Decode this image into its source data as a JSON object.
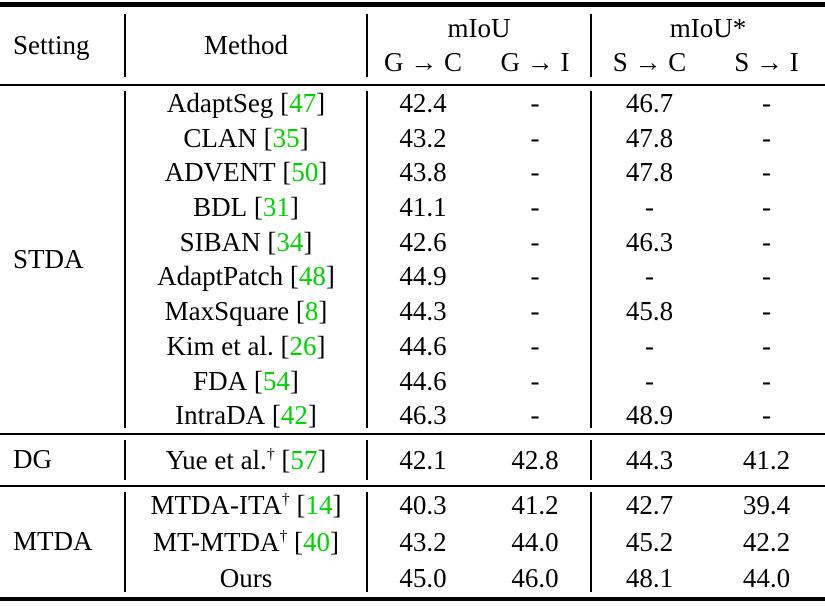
{
  "colors": {
    "citation_green": "#00d400",
    "text": "#000000",
    "background": "#ffffff",
    "rule": "#000000"
  },
  "header": {
    "setting": "Setting",
    "method": "Method",
    "miou": "mIoU",
    "miou_star": "mIoU*",
    "g_to_c": "G → C",
    "g_to_i": "G → I",
    "s_to_c": "S → C",
    "s_to_i": "S → I"
  },
  "sections": [
    {
      "setting": "STDA",
      "rows": [
        {
          "method": "AdaptSeg",
          "co": " [",
          "cite": "47",
          "cc": "]",
          "v1": "42.4",
          "v2": "-",
          "v3": "46.7",
          "v4": "-"
        },
        {
          "method": "CLAN",
          "co": " [",
          "cite": "35",
          "cc": "]",
          "v1": "43.2",
          "v2": "-",
          "v3": "47.8",
          "v4": "-"
        },
        {
          "method": "ADVENT",
          "co": " [",
          "cite": "50",
          "cc": "]",
          "v1": "43.8",
          "v2": "-",
          "v3": "47.8",
          "v4": "-"
        },
        {
          "method": "BDL",
          "co": " [",
          "cite": "31",
          "cc": "]",
          "v1": "41.1",
          "v2": "-",
          "v3": "-",
          "v4": "-"
        },
        {
          "method": "SIBAN",
          "co": " [",
          "cite": "34",
          "cc": "]",
          "v1": "42.6",
          "v2": "-",
          "v3": "46.3",
          "v4": "-"
        },
        {
          "method": "AdaptPatch",
          "co": " [",
          "cite": "48",
          "cc": "]",
          "v1": "44.9",
          "v2": "-",
          "v3": "-",
          "v4": "-"
        },
        {
          "method": "MaxSquare",
          "co": " [",
          "cite": "8",
          "cc": "]",
          "v1": "44.3",
          "v2": "-",
          "v3": "45.8",
          "v4": "-"
        },
        {
          "method": "Kim et al.",
          "co": " [",
          "cite": "26",
          "cc": "]",
          "v1": "44.6",
          "v2": "-",
          "v3": "-",
          "v4": "-"
        },
        {
          "method": "FDA",
          "co": " [",
          "cite": "54",
          "cc": "]",
          "v1": "44.6",
          "v2": "-",
          "v3": "-",
          "v4": "-"
        },
        {
          "method": "IntraDA",
          "co": " [",
          "cite": "42",
          "cc": "]",
          "v1": "46.3",
          "v2": "-",
          "v3": "48.9",
          "v4": "-"
        }
      ]
    },
    {
      "setting": "DG",
      "rows": [
        {
          "method": "Yue et al.",
          "dagger": "†",
          "co": " [",
          "cite": "57",
          "cc": "]",
          "v1": "42.1",
          "v2": "42.8",
          "v3": "44.3",
          "v4": "41.2"
        }
      ]
    },
    {
      "setting": "MTDA",
      "rows": [
        {
          "method": "MTDA-ITA",
          "dagger": "†",
          "co": " [",
          "cite": "14",
          "cc": "]",
          "v1": "40.3",
          "v2": "41.2",
          "v3": "42.7",
          "v4": "39.4"
        },
        {
          "method": "MT-MTDA",
          "dagger": "†",
          "co": " [",
          "cite": "40",
          "cc": "]",
          "v1": "43.2",
          "v2": "44.0",
          "v3": "45.2",
          "v4": "42.2"
        },
        {
          "method": "Ours",
          "v1": "45.0",
          "v2": "46.0",
          "v3": "48.1",
          "v4": "44.0"
        }
      ]
    }
  ]
}
